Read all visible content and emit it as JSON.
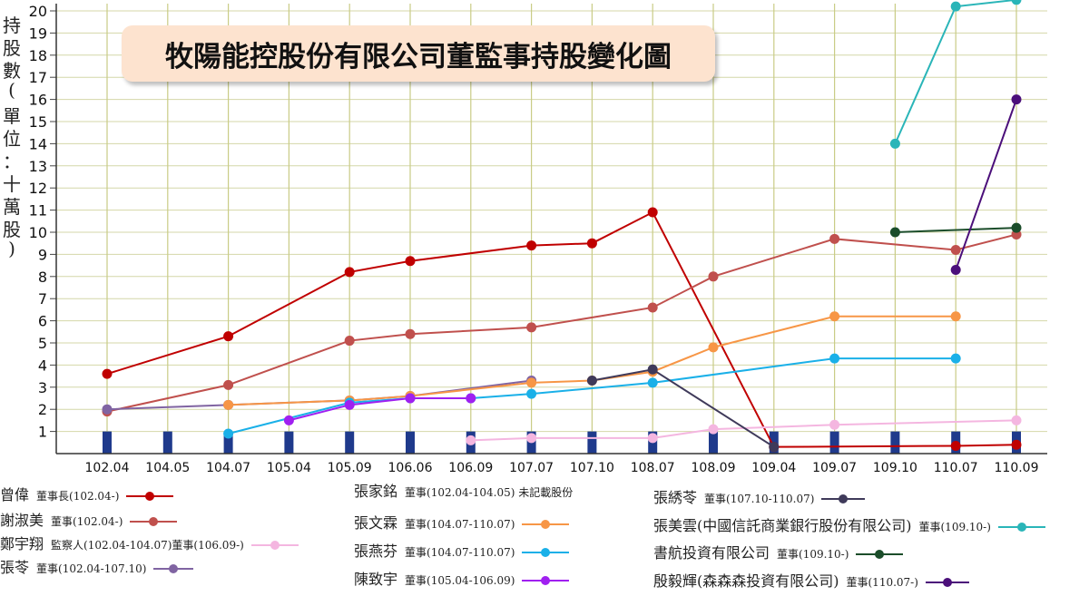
{
  "chart_data": {
    "type": "line",
    "title": "牧陽能控股份有限公司董監事持股變化圖",
    "ylabel": "持股數(單位：十萬股)",
    "ylim": [
      0,
      21
    ],
    "yticks": [
      1,
      2,
      3,
      4,
      5,
      6,
      7,
      8,
      9,
      10,
      11,
      12,
      13,
      14,
      15,
      16,
      17,
      18,
      19,
      20
    ],
    "categories": [
      "102.04",
      "104.05",
      "104.07",
      "105.04",
      "105.09",
      "106.06",
      "106.09",
      "107.07",
      "107.10",
      "108.07",
      "108.09",
      "109.04",
      "109.07",
      "109.10",
      "110.07",
      "110.09"
    ],
    "bar_values": [
      1,
      1,
      1,
      1,
      1,
      1,
      1,
      1,
      1,
      1,
      1,
      1,
      1,
      1,
      1,
      1
    ],
    "series": [
      {
        "name": "曾偉",
        "role": "董事長(102.04-)",
        "color": "#c00000",
        "values": [
          3.6,
          null,
          5.3,
          null,
          8.2,
          8.7,
          null,
          9.4,
          9.5,
          10.9,
          null,
          0.3,
          null,
          null,
          0.35,
          0.4
        ]
      },
      {
        "name": "謝淑美",
        "role": "董事(102.04-)",
        "color": "#c0504d",
        "values": [
          1.9,
          null,
          3.1,
          null,
          5.1,
          5.4,
          null,
          5.7,
          null,
          6.6,
          8.0,
          null,
          9.7,
          null,
          9.2,
          9.9
        ]
      },
      {
        "name": "鄭宇翔",
        "role": "監察人(102.04-104.07)董事(106.09-)",
        "color": "#f4b6e0",
        "values": [
          null,
          null,
          null,
          null,
          null,
          null,
          0.6,
          0.7,
          null,
          0.7,
          1.1,
          null,
          1.3,
          null,
          null,
          1.5
        ]
      },
      {
        "name": "張苓",
        "role": "董事(102.04-107.10)",
        "color": "#8064a2",
        "values": [
          2.0,
          null,
          2.2,
          null,
          2.4,
          2.6,
          null,
          3.3,
          null,
          null,
          null,
          null,
          null,
          null,
          null,
          null
        ]
      },
      {
        "name": "張家銘",
        "role": "董事(102.04-104.05) 未記載股份",
        "color": "#888888",
        "values": [
          null,
          null,
          null,
          null,
          null,
          null,
          null,
          null,
          null,
          null,
          null,
          null,
          null,
          null,
          null,
          null
        ]
      },
      {
        "name": "張文霖",
        "role": "董事(104.07-110.07)",
        "color": "#f79646",
        "values": [
          null,
          null,
          2.2,
          null,
          2.4,
          2.6,
          null,
          3.2,
          3.3,
          3.7,
          4.8,
          null,
          6.2,
          null,
          6.2,
          null
        ]
      },
      {
        "name": "張燕芬",
        "role": "董事(104.07-110.07)",
        "color": "#1ab0e8",
        "values": [
          null,
          null,
          0.9,
          null,
          2.3,
          2.5,
          2.5,
          2.7,
          null,
          3.2,
          null,
          null,
          4.3,
          null,
          4.3,
          null
        ]
      },
      {
        "name": "陳致宇",
        "role": "董事(105.04-106.09)",
        "color": "#a020f0",
        "values": [
          null,
          null,
          null,
          1.5,
          2.2,
          2.5,
          2.5,
          null,
          null,
          null,
          null,
          null,
          null,
          null,
          null,
          null
        ]
      },
      {
        "name": "張綉苓",
        "role": "董事(107.10-110.07)",
        "color": "#3f3a5a",
        "values": [
          null,
          null,
          null,
          null,
          null,
          null,
          null,
          null,
          3.3,
          3.8,
          null,
          0.3,
          null,
          null,
          null,
          null
        ]
      },
      {
        "name": "張美雲(中國信託商業銀行股份有限公司)",
        "role": "董事(109.10-)",
        "color": "#2ab5b8",
        "values": [
          null,
          null,
          null,
          null,
          null,
          null,
          null,
          null,
          null,
          null,
          null,
          null,
          null,
          14.0,
          20.2,
          20.5
        ]
      },
      {
        "name": "書航投資有限公司",
        "role": "董事(109.10-)",
        "color": "#1b4d2a",
        "values": [
          null,
          null,
          null,
          null,
          null,
          null,
          null,
          null,
          null,
          null,
          null,
          null,
          null,
          10.0,
          null,
          10.2
        ]
      },
      {
        "name": "殷毅輝(森森森投資有限公司)",
        "role": "董事(110.07-)",
        "color": "#4b0f7a",
        "values": [
          null,
          null,
          null,
          null,
          null,
          null,
          null,
          null,
          null,
          null,
          null,
          null,
          null,
          null,
          8.3,
          16.0
        ]
      }
    ]
  }
}
